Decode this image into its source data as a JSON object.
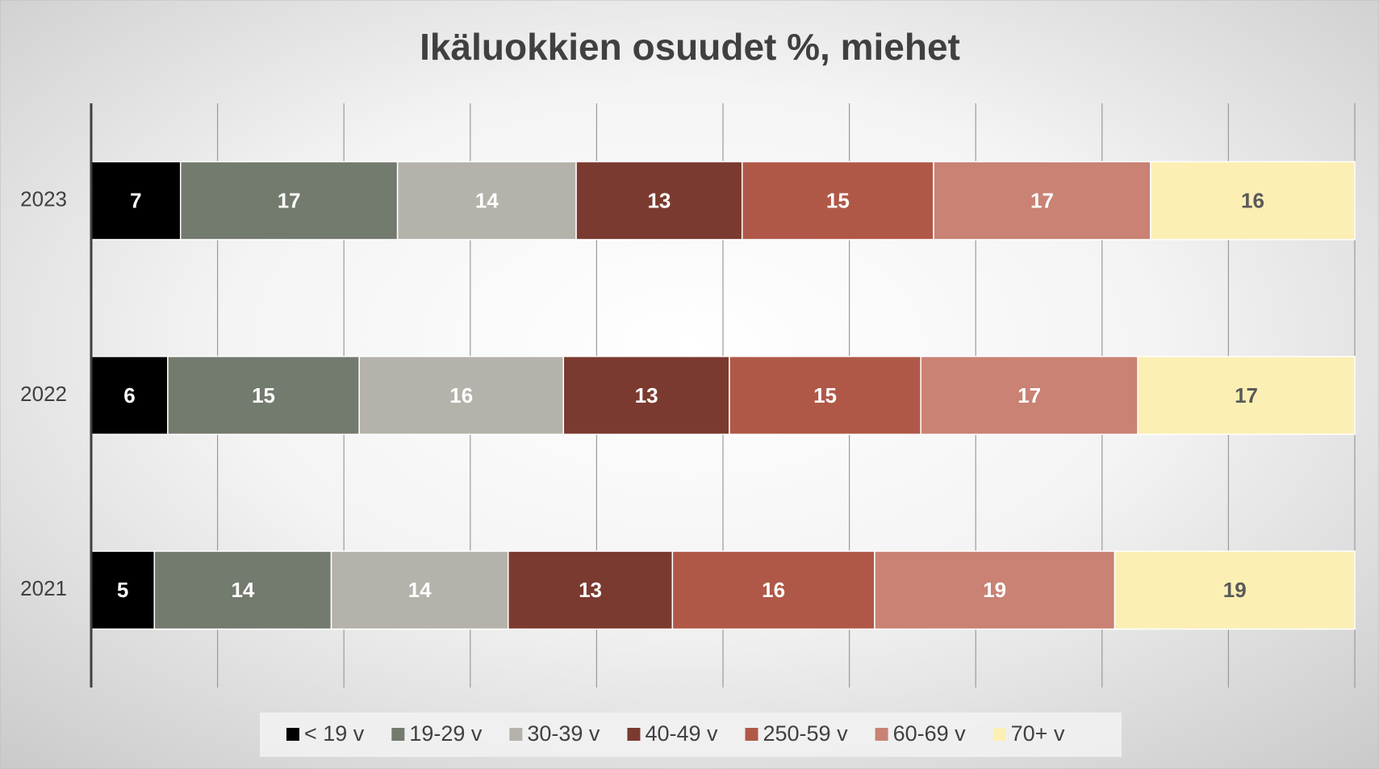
{
  "chart_data": {
    "type": "bar",
    "orientation": "horizontal",
    "stacking": "percent",
    "title": "Ikäluokkien osuudet %, miehet",
    "categories": [
      "2023",
      "2022",
      "2021"
    ],
    "series": [
      {
        "name": "< 19 v",
        "color": "#000000",
        "label_color": "#ffffff",
        "values": [
          7,
          6,
          5
        ]
      },
      {
        "name": "19-29 v",
        "color": "#737a6e",
        "label_color": "#ffffff",
        "values": [
          17,
          15,
          14
        ]
      },
      {
        "name": "30-39 v",
        "color": "#b4b2aa",
        "label_color": "#ffffff",
        "values": [
          14,
          16,
          14
        ]
      },
      {
        "name": "40-49 v",
        "color": "#7b3a2f",
        "label_color": "#ffffff",
        "values": [
          13,
          13,
          13
        ]
      },
      {
        "name": "250-59 v",
        "color": "#b05848",
        "label_color": "#ffffff",
        "values": [
          15,
          15,
          16
        ]
      },
      {
        "name": "60-69 v",
        "color": "#c98273",
        "label_color": "#ffffff",
        "values": [
          17,
          17,
          19
        ]
      },
      {
        "name": "70+ v",
        "color": "#fcefb4",
        "label_color": "#595959",
        "values": [
          16,
          17,
          19
        ]
      }
    ],
    "xlim": [
      0,
      100
    ],
    "xticks": [
      0,
      10,
      20,
      30,
      40,
      50,
      60,
      70,
      80,
      90,
      100
    ],
    "grid": true,
    "legend": "bottom"
  }
}
